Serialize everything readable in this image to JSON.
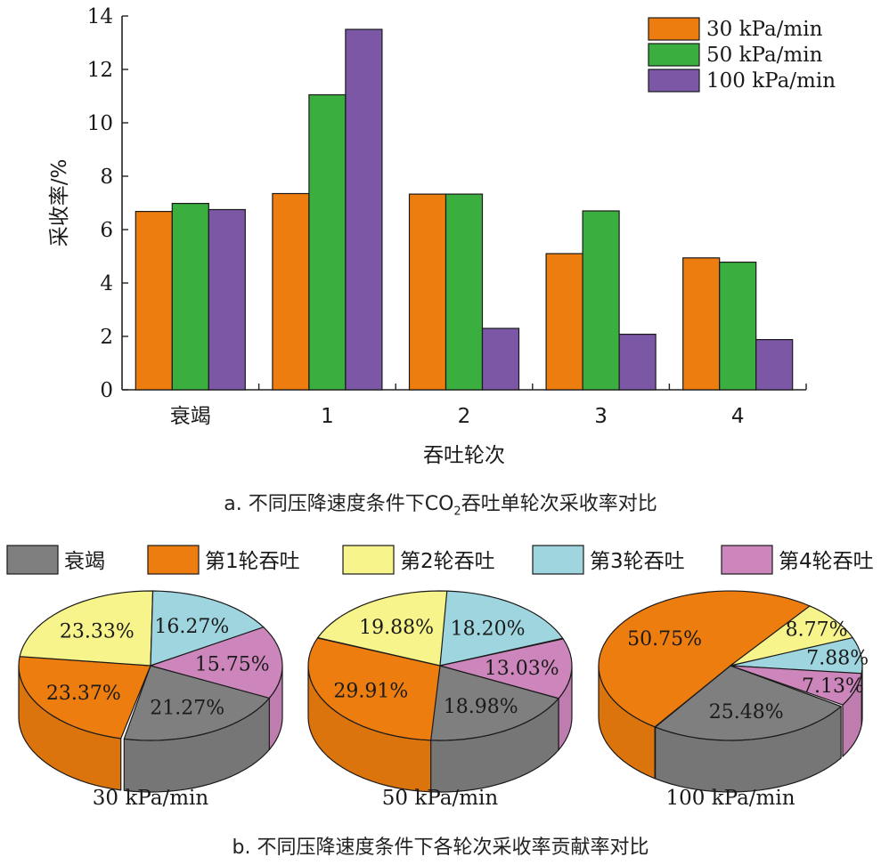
{
  "chart_data": [
    {
      "type": "bar",
      "xlabel": "吞吐轮次",
      "ylabel": "采收率/%",
      "ylim": [
        0,
        14
      ],
      "yticks": [
        "0",
        "2",
        "4",
        "6",
        "8",
        "10",
        "12",
        "14"
      ],
      "categories": [
        "衰竭",
        "1",
        "2",
        "3",
        "4"
      ],
      "legend_position": "top-right",
      "series": [
        {
          "name": "30 kPa/min",
          "color": "#ed7d0f",
          "values": [
            6.68,
            7.35,
            7.33,
            5.1,
            4.94
          ]
        },
        {
          "name": "50 kPa/min",
          "color": "#3aae3e",
          "values": [
            6.98,
            11.05,
            7.33,
            6.7,
            4.78
          ]
        },
        {
          "name": "100 kPa/min",
          "color": "#7b57a6",
          "values": [
            6.75,
            13.5,
            2.3,
            2.08,
            1.88
          ]
        }
      ]
    },
    {
      "type": "pie",
      "legend_position": "top",
      "categories": [
        "衰竭",
        "第1轮吞吐",
        "第2轮吞吐",
        "第3轮吞吐",
        "第4轮吞吐"
      ],
      "colors": [
        "#7f7f7f",
        "#ed7d0f",
        "#f6f48a",
        "#9ed5df",
        "#cd86bc"
      ],
      "pies": [
        {
          "name": "30 kPa/min",
          "values": [
            21.27,
            23.37,
            23.33,
            16.27,
            15.75
          ],
          "labels": [
            "21.27%",
            "23.37%",
            "23.33%",
            "16.27%",
            "15.75%"
          ]
        },
        {
          "name": "50 kPa/min",
          "values": [
            18.98,
            29.91,
            19.88,
            18.2,
            13.03
          ],
          "labels": [
            "18.98%",
            "29.91%",
            "19.88%",
            "18.20%",
            "13.03%"
          ]
        },
        {
          "name": "100 kPa/min",
          "values": [
            25.48,
            50.75,
            8.77,
            7.88,
            7.13
          ],
          "labels": [
            "25.48%",
            "50.75%",
            "8.77%",
            "7.88%",
            "7.13%"
          ]
        }
      ]
    }
  ],
  "captions": {
    "a_pre": "a. 不同压降速度条件下CO",
    "a_sub": "2",
    "a_post": "吞吐单轮次采收率对比",
    "b": "b. 不同压降速度条件下各轮次采收率贡献率对比"
  }
}
